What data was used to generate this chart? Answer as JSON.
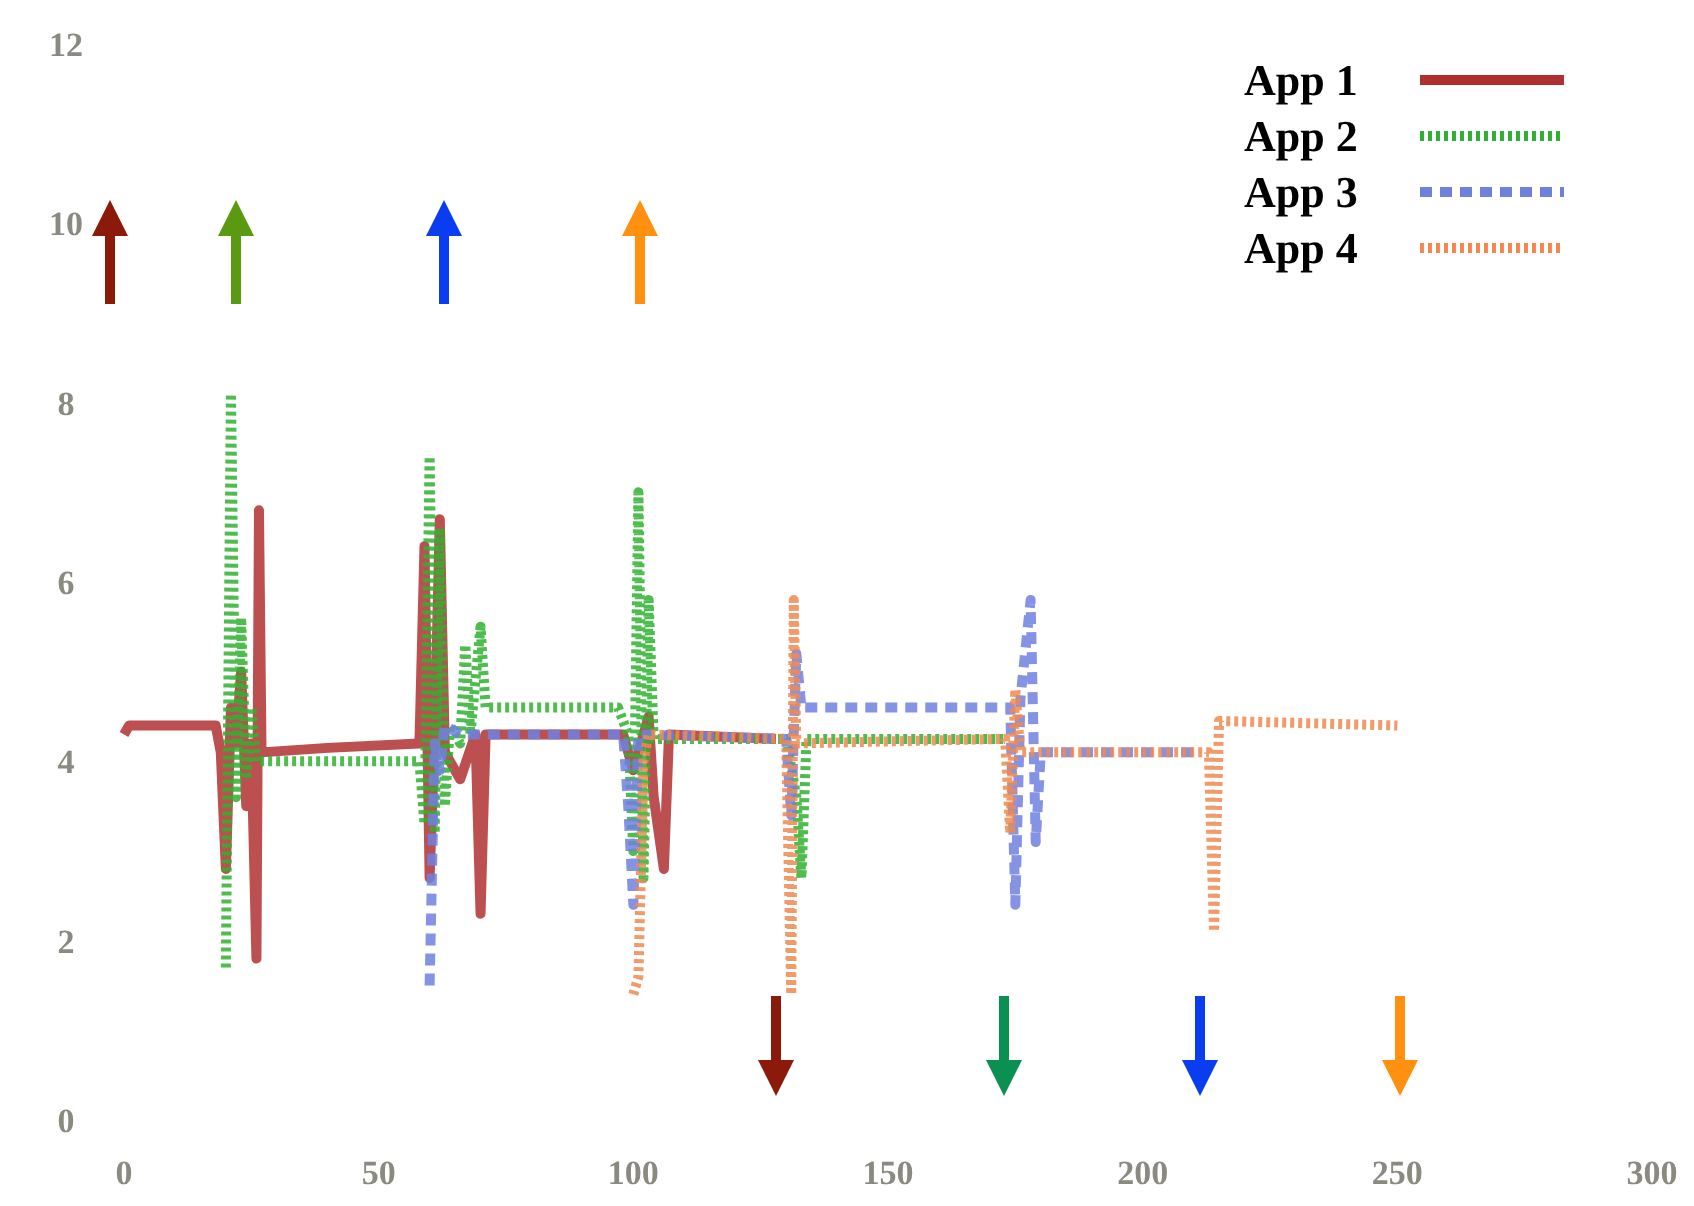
{
  "chart_data": {
    "type": "line",
    "xlim": [
      0,
      300
    ],
    "xticks": [
      0,
      50,
      100,
      150,
      200,
      250,
      300
    ],
    "ylim": [
      0,
      12
    ],
    "yticks": [
      0,
      2,
      4,
      6,
      8,
      10,
      12
    ],
    "grid": false,
    "legend": "top right",
    "marker": "none",
    "series": [
      {
        "name": "App 1",
        "color": "#b03030",
        "line_style": "solid",
        "x": [
          0,
          1,
          18,
          19,
          20,
          21,
          22,
          23,
          24,
          25,
          26,
          26.5,
          27,
          40,
          58,
          59,
          60,
          61,
          62,
          63,
          66,
          69,
          70,
          71,
          98,
          100,
          103,
          104,
          106,
          107,
          128
        ],
        "values": [
          4.3,
          4.4,
          4.4,
          4.1,
          2.8,
          4.6,
          4.2,
          5.0,
          3.5,
          4.2,
          1.8,
          6.8,
          4.1,
          4.15,
          4.2,
          6.4,
          2.7,
          4.3,
          6.7,
          4.1,
          3.8,
          4.3,
          2.3,
          4.3,
          4.3,
          3.9,
          4.5,
          3.6,
          2.8,
          4.3,
          4.25
        ]
      },
      {
        "name": "App 2",
        "color": "#30b030",
        "line_style": "dotted",
        "x": [
          20,
          21,
          22,
          23,
          24,
          25,
          26,
          58,
          59,
          60,
          61,
          62,
          63,
          64,
          66,
          67,
          68,
          70,
          71,
          97,
          99,
          100,
          101,
          102,
          103,
          104,
          130,
          132,
          133,
          134,
          173
        ],
        "values": [
          1.7,
          8.1,
          3.6,
          5.6,
          3.8,
          4.6,
          4.0,
          4.0,
          3.3,
          7.4,
          3.2,
          6.6,
          3.5,
          4.4,
          4.2,
          5.3,
          4.3,
          5.5,
          4.6,
          4.6,
          4.3,
          3.0,
          7.0,
          2.7,
          5.8,
          4.25,
          4.25,
          3.6,
          2.7,
          4.25,
          4.25
        ]
      },
      {
        "name": "App 3",
        "color": "#7080e0",
        "line_style": "dashed",
        "x": [
          60,
          61,
          62,
          63,
          66,
          98,
          99,
          100,
          101,
          130,
          131,
          132,
          133,
          174,
          175,
          176,
          178,
          179,
          180,
          211
        ],
        "values": [
          1.5,
          4.2,
          3.9,
          4.4,
          4.3,
          4.3,
          3.5,
          2.4,
          4.3,
          4.25,
          3.4,
          5.2,
          4.6,
          4.6,
          2.4,
          4.7,
          5.8,
          3.1,
          4.1,
          4.1
        ]
      },
      {
        "name": "App 4",
        "color": "#f08a50",
        "line_style": "dotted",
        "x": [
          100,
          101,
          102,
          103,
          130,
          131,
          131.5,
          132,
          173,
          174,
          175,
          176,
          213,
          214,
          215,
          250
        ],
        "values": [
          1.4,
          1.6,
          4.0,
          4.3,
          4.25,
          1.4,
          5.8,
          4.2,
          4.25,
          3.2,
          4.8,
          4.1,
          4.1,
          2.1,
          4.45,
          4.4
        ]
      }
    ]
  }
}
